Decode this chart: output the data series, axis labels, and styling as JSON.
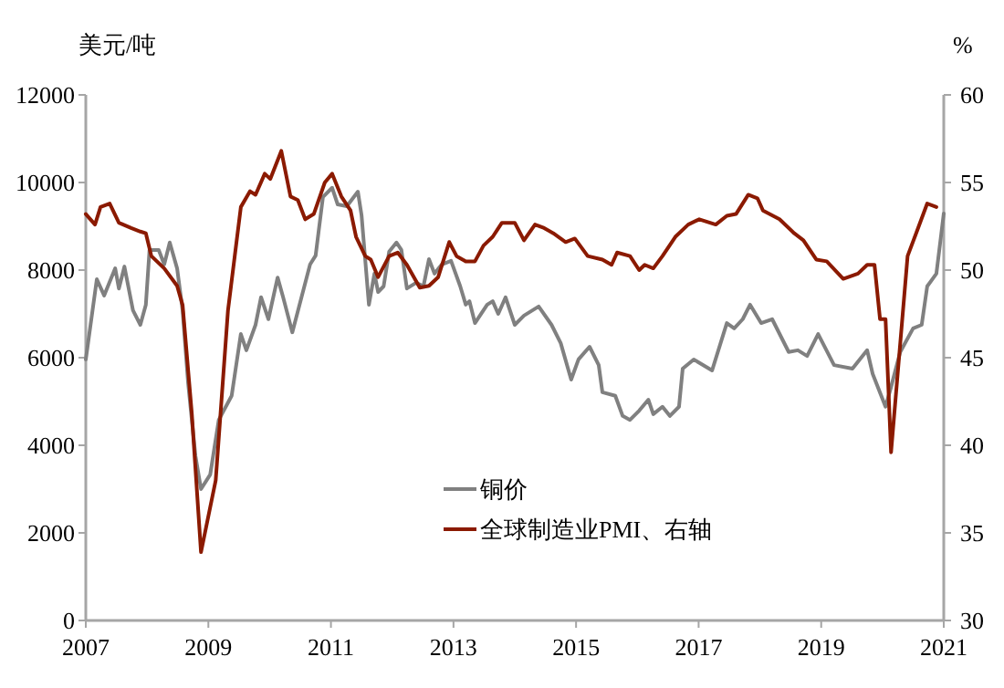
{
  "chart_data": {
    "type": "line",
    "ylabel": "美元/吨",
    "y2label": "%",
    "xlim": [
      2007,
      2021
    ],
    "xticks": [
      2007,
      2009,
      2011,
      2013,
      2015,
      2017,
      2019,
      2021
    ],
    "ylim": [
      0,
      12000
    ],
    "yticks": [
      0,
      2000,
      4000,
      6000,
      8000,
      10000,
      12000
    ],
    "y2lim": [
      30,
      60
    ],
    "y2ticks": [
      30,
      35,
      40,
      45,
      50,
      55,
      60
    ],
    "grid": false,
    "legend": "bottom",
    "marker": "none",
    "line_style": "solid",
    "series": [
      {
        "name": "铜价",
        "color": "#808080",
        "x": [
          2007.0,
          2007.18,
          2007.3,
          2007.48,
          2007.54,
          2007.63,
          2007.77,
          2007.89,
          2007.98,
          2008.04,
          2008.19,
          2008.28,
          2008.37,
          2008.49,
          2008.58,
          2008.67,
          2008.79,
          2008.88,
          2009.03,
          2009.17,
          2009.38,
          2009.53,
          2009.62,
          2009.77,
          2009.86,
          2009.98,
          2010.13,
          2010.22,
          2010.37,
          2010.52,
          2010.66,
          2010.75,
          2010.87,
          2011.02,
          2011.11,
          2011.26,
          2011.44,
          2011.5,
          2011.62,
          2011.71,
          2011.77,
          2011.86,
          2011.95,
          2012.07,
          2012.15,
          2012.24,
          2012.39,
          2012.51,
          2012.6,
          2012.69,
          2012.81,
          2012.96,
          2013.11,
          2013.2,
          2013.26,
          2013.35,
          2013.55,
          2013.64,
          2013.73,
          2013.85,
          2014.0,
          2014.15,
          2014.39,
          2014.6,
          2014.75,
          2014.92,
          2015.04,
          2015.22,
          2015.37,
          2015.43,
          2015.64,
          2015.76,
          2015.88,
          2016.03,
          2016.18,
          2016.26,
          2016.41,
          2016.53,
          2016.68,
          2016.74,
          2016.92,
          2017.22,
          2017.46,
          2017.58,
          2017.72,
          2017.84,
          2018.02,
          2018.2,
          2018.47,
          2018.62,
          2018.77,
          2018.95,
          2019.21,
          2019.51,
          2019.75,
          2019.84,
          2020.05,
          2020.14,
          2020.29,
          2020.5,
          2020.64,
          2020.73,
          2020.88,
          2021.0
        ],
        "values": [
          5960,
          7790,
          7420,
          8040,
          7580,
          8080,
          7080,
          6750,
          7210,
          8460,
          8460,
          8130,
          8630,
          8040,
          7080,
          5420,
          3750,
          3000,
          3330,
          4580,
          5130,
          6540,
          6170,
          6750,
          7380,
          6880,
          7830,
          7380,
          6580,
          7380,
          8130,
          8330,
          9670,
          9880,
          9500,
          9460,
          9790,
          9250,
          7210,
          7920,
          7500,
          7630,
          8420,
          8630,
          8460,
          7580,
          7710,
          7630,
          8250,
          7920,
          8130,
          8210,
          7630,
          7210,
          7290,
          6790,
          7210,
          7290,
          7000,
          7380,
          6750,
          6960,
          7170,
          6750,
          6330,
          5500,
          5960,
          6250,
          5830,
          5210,
          5130,
          4670,
          4580,
          4790,
          5040,
          4710,
          4880,
          4670,
          4880,
          5750,
          5960,
          5710,
          6790,
          6670,
          6880,
          7210,
          6790,
          6880,
          6130,
          6170,
          6040,
          6540,
          5830,
          5750,
          6170,
          5630,
          4880,
          5330,
          6130,
          6670,
          6750,
          7630,
          7920,
          9290
        ]
      },
      {
        "name": "全球制造业PMI、右轴",
        "color": "#8b1a00",
        "axis": "y2",
        "x": [
          2007.0,
          2007.15,
          2007.24,
          2007.39,
          2007.54,
          2007.74,
          2007.89,
          2007.98,
          2008.07,
          2008.28,
          2008.49,
          2008.58,
          2008.73,
          2008.88,
          2009.12,
          2009.32,
          2009.53,
          2009.68,
          2009.77,
          2009.92,
          2010.01,
          2010.19,
          2010.34,
          2010.46,
          2010.58,
          2010.72,
          2010.9,
          2011.02,
          2011.17,
          2011.32,
          2011.41,
          2011.56,
          2011.65,
          2011.77,
          2011.95,
          2012.09,
          2012.24,
          2012.45,
          2012.6,
          2012.75,
          2012.93,
          2013.05,
          2013.2,
          2013.35,
          2013.49,
          2013.64,
          2013.79,
          2014.0,
          2014.15,
          2014.33,
          2014.48,
          2014.63,
          2014.83,
          2014.98,
          2015.19,
          2015.43,
          2015.58,
          2015.67,
          2015.88,
          2016.03,
          2016.12,
          2016.26,
          2016.41,
          2016.62,
          2016.83,
          2017.01,
          2017.28,
          2017.46,
          2017.61,
          2017.81,
          2017.96,
          2018.05,
          2018.32,
          2018.56,
          2018.71,
          2018.92,
          2019.09,
          2019.36,
          2019.6,
          2019.75,
          2019.87,
          2019.96,
          2020.05,
          2020.14,
          2020.41,
          2020.56,
          2020.73,
          2020.88
        ],
        "values": [
          53.2,
          52.6,
          53.6,
          53.8,
          52.7,
          52.4,
          52.2,
          52.1,
          50.8,
          50.1,
          49.1,
          48.0,
          41.8,
          33.9,
          38.0,
          47.7,
          53.6,
          54.5,
          54.3,
          55.5,
          55.2,
          56.8,
          54.2,
          54.0,
          52.9,
          53.2,
          55.0,
          55.5,
          54.2,
          53.4,
          51.9,
          50.8,
          50.6,
          49.6,
          50.8,
          51.0,
          50.3,
          49.0,
          49.1,
          49.6,
          51.6,
          50.8,
          50.5,
          50.5,
          51.4,
          51.9,
          52.7,
          52.7,
          51.7,
          52.6,
          52.4,
          52.1,
          51.6,
          51.8,
          50.8,
          50.6,
          50.3,
          51.0,
          50.8,
          50.0,
          50.3,
          50.1,
          50.8,
          51.9,
          52.6,
          52.9,
          52.6,
          53.1,
          53.2,
          54.3,
          54.1,
          53.4,
          52.9,
          52.1,
          51.7,
          50.6,
          50.5,
          49.5,
          49.8,
          50.3,
          50.3,
          47.2,
          47.2,
          39.6,
          50.8,
          52.2,
          53.8,
          53.6
        ]
      }
    ]
  }
}
